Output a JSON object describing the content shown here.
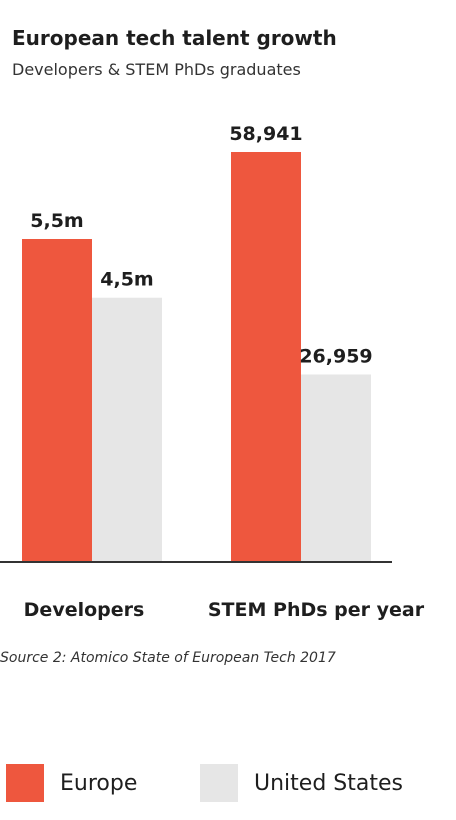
{
  "header": {
    "title": "European tech talent growth",
    "subtitle": "Developers & STEM PhDs graduates"
  },
  "source": "Source 2: Atomico State of European Tech 2017",
  "colors": {
    "europe": "#ee573e",
    "united_states": "#e6e6e6",
    "axis": "#333333",
    "text": "#1e1e1e"
  },
  "legend": [
    {
      "name": "Europe",
      "color": "#ee573e"
    },
    {
      "name": "United States",
      "color": "#e6e6e6"
    }
  ],
  "chart_data": {
    "type": "bar",
    "title": "European tech talent growth",
    "subtitle": "Developers & STEM PhDs graduates",
    "categories": [
      "Developers",
      "STEM PhDs per year"
    ],
    "series": [
      {
        "name": "Europe",
        "values": [
          5.5,
          58941
        ],
        "labels": [
          "5,5m",
          "58,941"
        ]
      },
      {
        "name": "United States",
        "values": [
          4.5,
          26959
        ],
        "labels": [
          "4,5m",
          "26,959"
        ]
      }
    ],
    "legend_position": "bottom",
    "grid": false
  }
}
